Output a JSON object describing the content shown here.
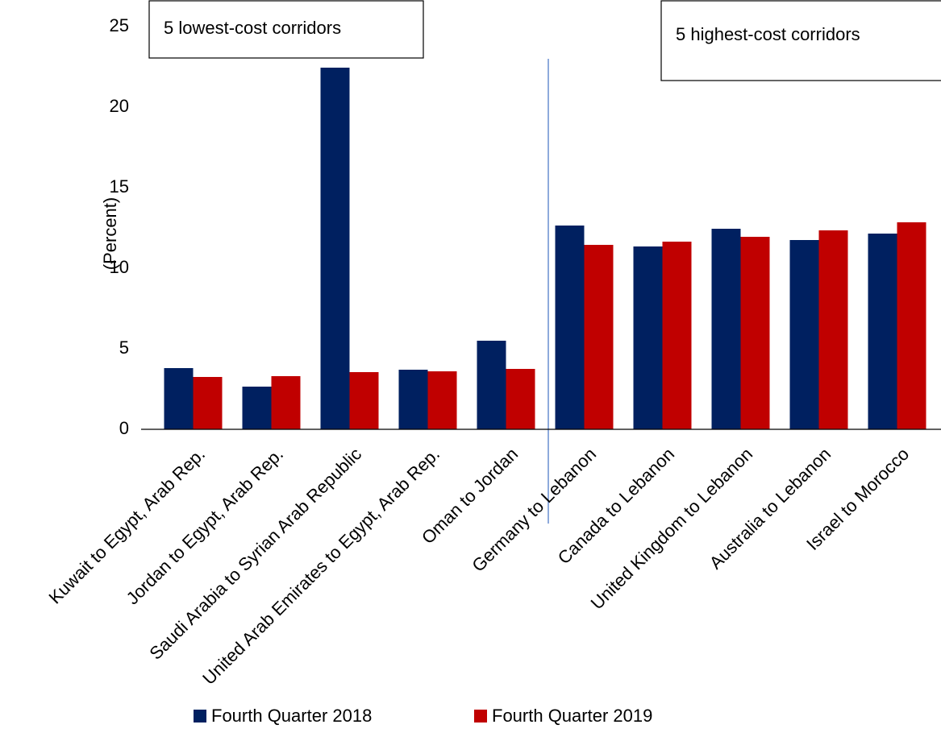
{
  "chart_data": {
    "type": "bar",
    "y_label": "(Percent)",
    "annotations": [
      "5 lowest-cost corridors",
      "5 highest-cost corridors"
    ],
    "categories": [
      "Kuwait to Egypt, Arab Rep.",
      "Jordan to Egypt, Arab Rep.",
      "Saudi Arabia to Syrian Arab Republic",
      "United Arab Emirates to Egypt, Arab Rep.",
      "Oman to Jordan",
      "Germany to Lebanon",
      "Canada to Lebanon",
      "United Kingdom to Lebanon",
      "Australia to Lebanon",
      "Israel to Morocco"
    ],
    "series": [
      {
        "name": "Fourth Quarter 2018",
        "color": "#002060",
        "values": [
          3.8,
          2.65,
          22.45,
          3.7,
          5.5,
          12.65,
          11.35,
          12.45,
          11.75,
          12.15
        ]
      },
      {
        "name": "Fourth Quarter 2019",
        "color": "#c00000",
        "values": [
          3.25,
          3.3,
          3.55,
          3.6,
          3.75,
          11.45,
          11.65,
          11.95,
          12.35,
          12.85
        ]
      }
    ],
    "ylim": [
      0,
      25
    ],
    "yticks": [
      0,
      5,
      10,
      15,
      20,
      25
    ],
    "grid": false,
    "legend": "bottom"
  }
}
